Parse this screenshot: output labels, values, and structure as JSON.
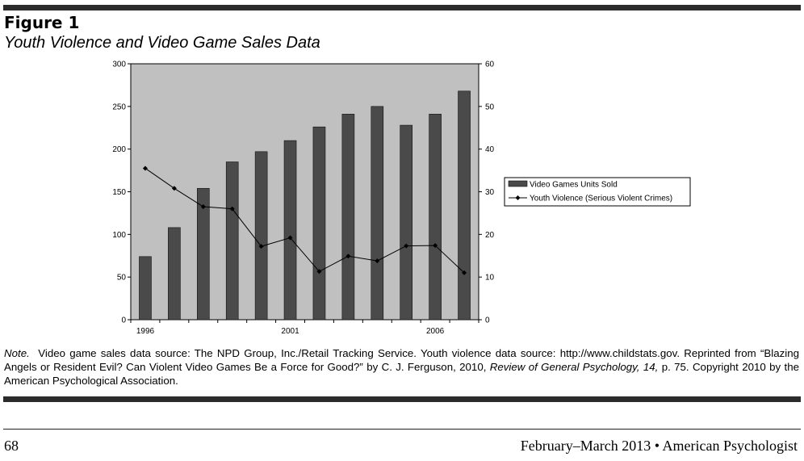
{
  "figure": {
    "label": "Figure 1",
    "title": "Youth Violence and Video Game Sales Data"
  },
  "chart_data": {
    "type": "bar+line",
    "categories": [
      "1996",
      "1997",
      "1998",
      "1999",
      "2000",
      "2001",
      "2002",
      "2003",
      "2004",
      "2005",
      "2006",
      "2007"
    ],
    "x_tick_labels": [
      "1996",
      "2001",
      "2006"
    ],
    "left_axis": {
      "range": [
        0,
        300
      ],
      "ticks": [
        0,
        50,
        100,
        150,
        200,
        250,
        300
      ]
    },
    "right_axis": {
      "range": [
        0,
        60
      ],
      "ticks": [
        0,
        10,
        20,
        30,
        40,
        50,
        60
      ]
    },
    "series": [
      {
        "name": "Video Games Units Sold",
        "type": "bar",
        "axis": "left",
        "values": [
          74,
          108,
          154,
          185,
          197,
          210,
          226,
          241,
          250,
          228,
          241,
          268
        ]
      },
      {
        "name": "Youth Violence (Serious Violent Crimes)",
        "type": "line",
        "axis": "right",
        "values": [
          35.5,
          30.8,
          26.5,
          26.0,
          17.2,
          19.2,
          11.3,
          14.9,
          13.8,
          17.3,
          17.4,
          11.0
        ]
      }
    ],
    "legend_position": "right",
    "grid": false,
    "colors": {
      "plot_bg": "#c0c0c0",
      "bar": "#4a4a4a",
      "line": "#000000"
    }
  },
  "note": {
    "label": "Note.",
    "text_1": "Video game sales data source: The NPD Group, Inc./Retail Tracking Service. Youth violence data source: http://www.childstats.gov. Reprinted from “Blazing Angels or Resident Evil? Can Violent Video Games Be a Force for Good?” by C. J. Ferguson, 2010,",
    "journal": "Review of General Psychology, 14,",
    "text_2": "p. 75. Copyright 2010 by the American Psychological Association."
  },
  "footer": {
    "page_number": "68",
    "running_head": "February–March 2013 • American Psychologist"
  }
}
